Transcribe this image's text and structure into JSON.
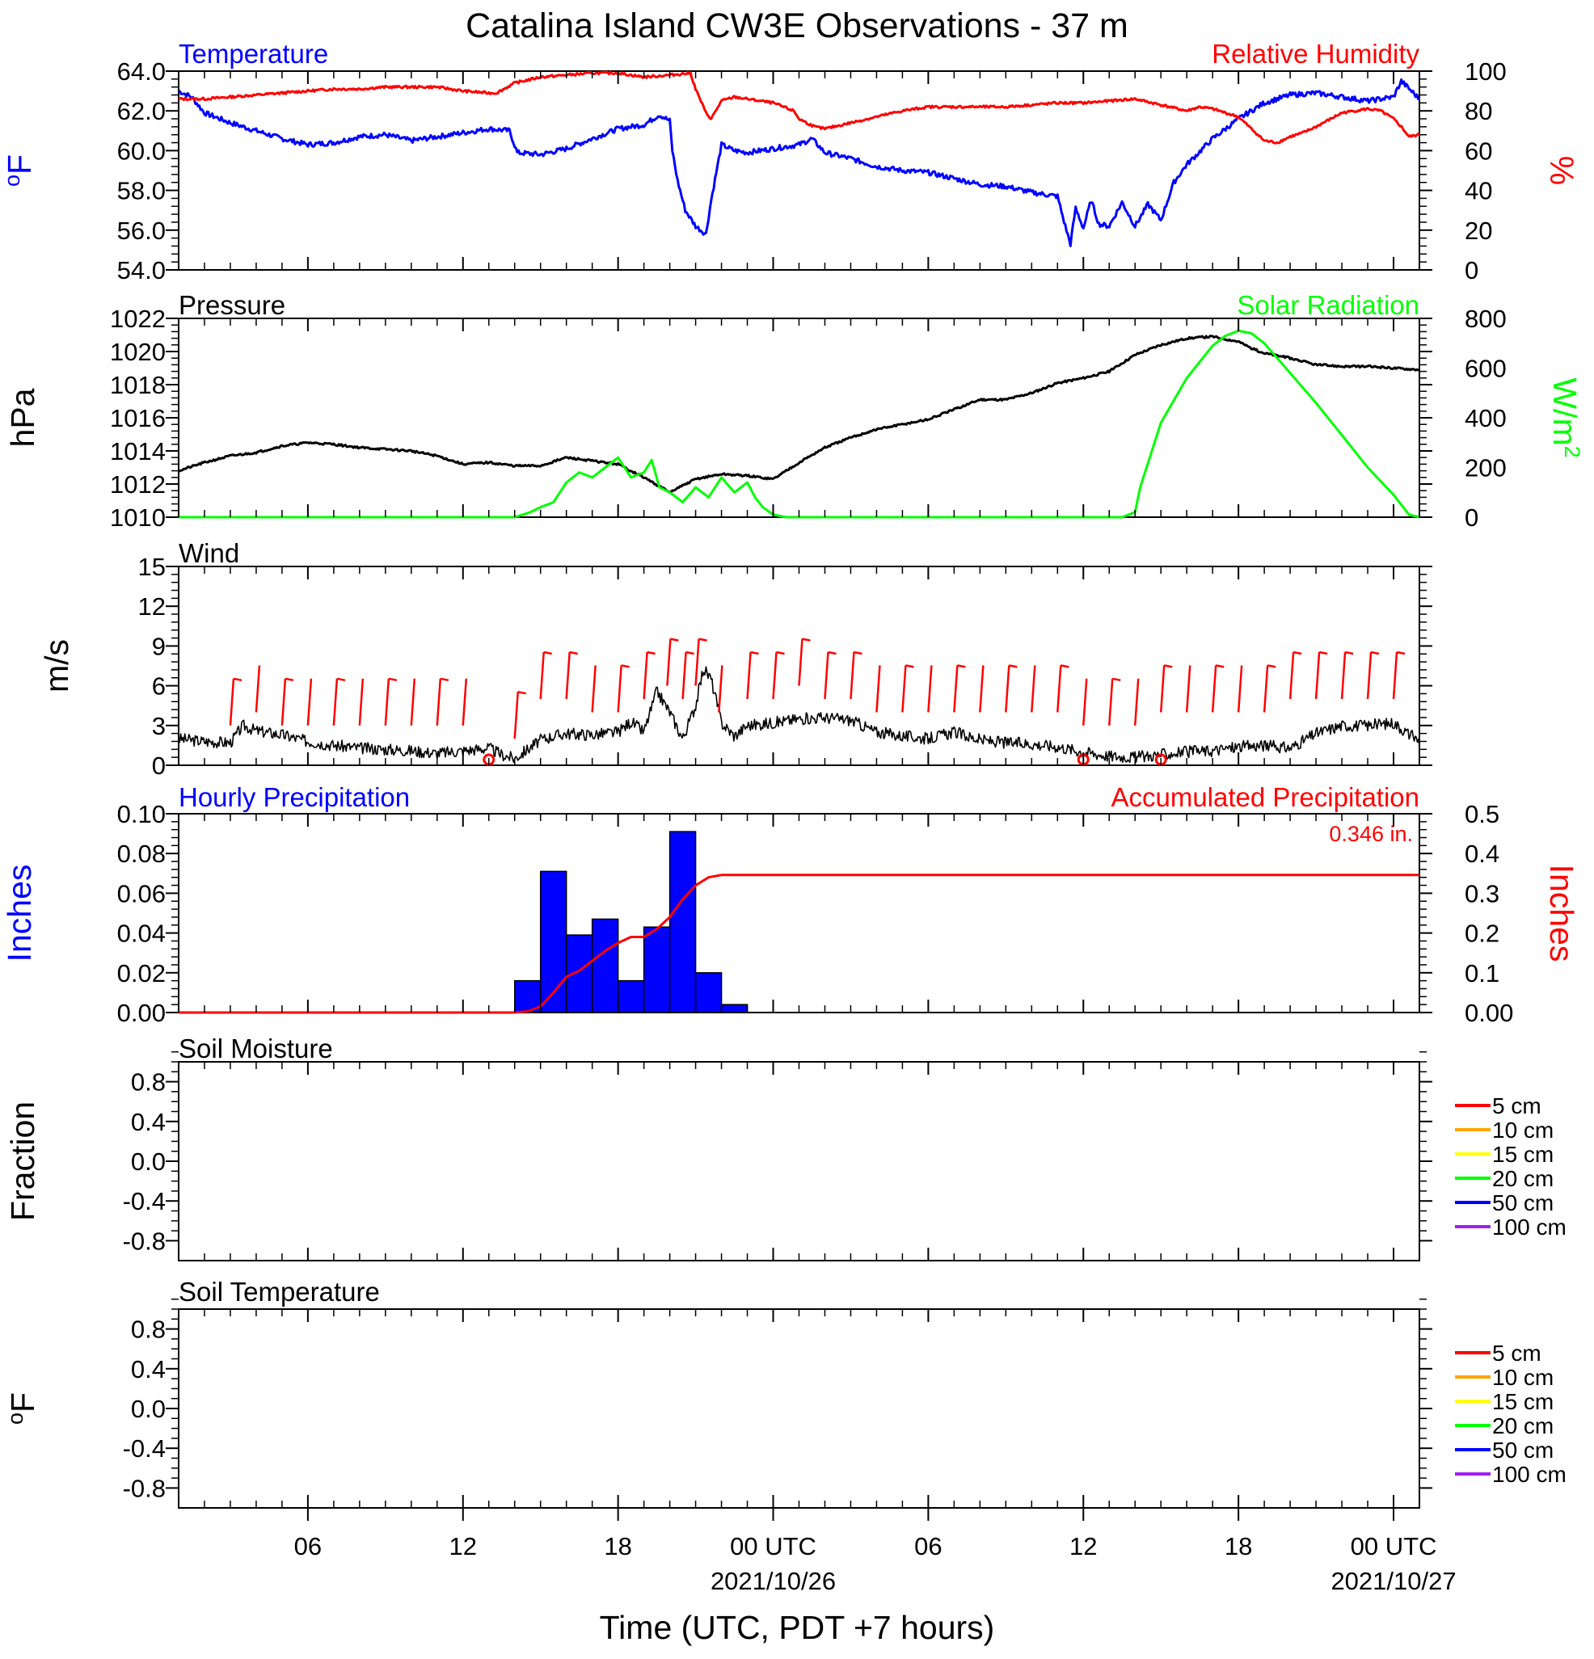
{
  "title": "Catalina Island CW3E Observations - 37 m",
  "xlabel": "Time (UTC, PDT +7 hours)",
  "x_ticks": [
    {
      "h": 6,
      "label": "06",
      "date": ""
    },
    {
      "h": 12,
      "label": "12",
      "date": ""
    },
    {
      "h": 18,
      "label": "18",
      "date": ""
    },
    {
      "h": 24,
      "label": "00 UTC",
      "date": "2021/10/26"
    },
    {
      "h": 30,
      "label": "06",
      "date": ""
    },
    {
      "h": 36,
      "label": "12",
      "date": ""
    },
    {
      "h": 42,
      "label": "18",
      "date": ""
    },
    {
      "h": 48,
      "label": "00 UTC",
      "date": "2021/10/27"
    }
  ],
  "colors": {
    "temperature": "#0000ff",
    "humidity": "#ff0000",
    "pressure": "#000000",
    "solar": "#00ff00",
    "precip_bar": "#0000ff",
    "accum": "#ff0000",
    "wind_barb": "#ff0000"
  },
  "panels": {
    "temp_rh": {
      "left_title": "Temperature",
      "right_title": "Relative Humidity",
      "left_ylabel": "oF",
      "right_ylabel": "%",
      "left_ticks": [
        "54.0",
        "56.0",
        "58.0",
        "60.0",
        "62.0",
        "64.0"
      ],
      "right_ticks": [
        "0",
        "20",
        "40",
        "60",
        "80",
        "100"
      ]
    },
    "pressure_solar": {
      "left_title": "Pressure",
      "right_title": "Solar Radiation",
      "left_ylabel": "hPa",
      "right_ylabel": "W/m2",
      "left_ticks": [
        "1010",
        "1012",
        "1014",
        "1016",
        "1018",
        "1020",
        "1022"
      ],
      "right_ticks": [
        "0",
        "200",
        "400",
        "600",
        "800"
      ]
    },
    "wind": {
      "left_title": "Wind",
      "left_ylabel": "m/s",
      "left_ticks": [
        "0",
        "3",
        "6",
        "9",
        "12",
        "15"
      ]
    },
    "precip": {
      "left_title": "Hourly Precipitation",
      "right_title": "Accumulated Precipitation",
      "total": "0.346 in.",
      "left_ylabel": "Inches",
      "right_ylabel": "Inches",
      "left_ticks": [
        "0.00",
        "0.02",
        "0.04",
        "0.06",
        "0.08",
        "0.10"
      ],
      "right_ticks": [
        "0.00",
        "0.1",
        "0.2",
        "0.3",
        "0.4",
        "0.5"
      ]
    },
    "soil_moisture": {
      "left_title": "Soil Moisture",
      "left_ylabel": "Fraction",
      "left_ticks": [
        "-0.8",
        "-0.4",
        "0.0",
        "0.4",
        "0.8"
      ]
    },
    "soil_temp": {
      "left_title": "Soil Temperature",
      "left_ylabel": "oF",
      "left_ticks": [
        "-0.8",
        "-0.4",
        "0.0",
        "0.4",
        "0.8"
      ]
    }
  },
  "soil_legend": [
    {
      "label": "5 cm",
      "color": "#ff0000"
    },
    {
      "label": "10 cm",
      "color": "#ffa500"
    },
    {
      "label": "15 cm",
      "color": "#ffff00"
    },
    {
      "label": "20 cm",
      "color": "#00ff00"
    },
    {
      "label": "50 cm",
      "color": "#0000ff"
    },
    {
      "label": "100 cm",
      "color": "#a020f0"
    }
  ],
  "chart_data": [
    {
      "type": "line",
      "title": "Temperature / Relative Humidity",
      "x_unit": "hours since 2021-10-25 00 UTC",
      "xlim": [
        1,
        49
      ],
      "series": [
        {
          "name": "Temperature",
          "axis": "left",
          "ylim": [
            54,
            64
          ],
          "x": [
            1,
            1.5,
            2,
            3,
            4,
            5,
            6,
            7,
            8,
            9,
            10,
            11,
            12,
            13,
            13.8,
            14.1,
            15,
            16,
            17,
            18,
            19,
            19.6,
            20,
            20.1,
            20.3,
            20.6,
            21,
            21.4,
            21.6,
            22,
            22.5,
            23,
            24,
            25,
            25.5,
            26,
            27,
            28,
            29,
            30,
            31,
            32,
            33,
            34,
            35,
            35.3,
            35.5,
            35.7,
            36,
            36.3,
            36.6,
            37,
            37.5,
            38,
            38.5,
            39,
            39.5,
            40,
            41,
            42,
            43,
            44,
            45,
            46,
            47,
            48,
            48.3,
            49
          ],
          "y": [
            63.0,
            62.7,
            61.9,
            61.4,
            61.0,
            60.6,
            60.3,
            60.4,
            60.7,
            60.8,
            60.5,
            60.7,
            60.9,
            61.1,
            61.0,
            59.9,
            59.8,
            60.1,
            60.6,
            61.1,
            61.3,
            61.8,
            61.5,
            60.0,
            58.5,
            57.0,
            56.2,
            55.8,
            57.5,
            60.3,
            60.0,
            59.9,
            60.1,
            60.3,
            60.6,
            59.9,
            59.6,
            59.2,
            59.0,
            58.9,
            58.6,
            58.3,
            58.2,
            57.9,
            57.7,
            56.2,
            55.3,
            57.1,
            56.1,
            57.5,
            56.3,
            56.2,
            57.4,
            56.2,
            57.3,
            56.5,
            58.4,
            59.3,
            60.6,
            61.6,
            62.4,
            62.8,
            62.9,
            62.7,
            62.5,
            62.7,
            63.5,
            62.6
          ]
        },
        {
          "name": "Relative Humidity",
          "axis": "right",
          "ylim": [
            0,
            100
          ],
          "x": [
            1,
            2,
            3,
            4,
            5,
            6,
            7,
            8,
            9,
            10,
            11,
            12,
            13,
            13.3,
            14,
            15,
            16,
            17,
            18,
            19,
            20,
            20.8,
            21,
            21.4,
            21.6,
            22,
            22.5,
            23,
            24,
            24.8,
            25,
            25.6,
            26,
            27,
            28,
            29,
            30,
            31,
            32,
            33,
            34,
            35,
            36,
            37,
            38,
            39,
            40,
            40.5,
            41,
            42,
            43,
            43.5,
            44,
            44.5,
            45,
            46,
            47,
            47.5,
            48,
            48.3,
            48.6,
            49
          ],
          "y": [
            86,
            86,
            87,
            88,
            89,
            90,
            91,
            91,
            92,
            92,
            92,
            90,
            89,
            89,
            94,
            97,
            98,
            99,
            99,
            97,
            98,
            99,
            91,
            79,
            76,
            85,
            87,
            86,
            84,
            80,
            76,
            72,
            71,
            74,
            77,
            80,
            82,
            82,
            82,
            82,
            83,
            84,
            84,
            85,
            86,
            83,
            80,
            82,
            81,
            77,
            65,
            64,
            67,
            69,
            72,
            79,
            81,
            80,
            76,
            72,
            67,
            68
          ]
        }
      ]
    },
    {
      "type": "line",
      "title": "Pressure / Solar Radiation",
      "x_unit": "hours since 2021-10-25 00 UTC",
      "xlim": [
        1,
        49
      ],
      "series": [
        {
          "name": "Pressure",
          "axis": "left",
          "ylim": [
            1010,
            1022
          ],
          "x": [
            1,
            2,
            3,
            4,
            5,
            6,
            7,
            8,
            9,
            10,
            11,
            12,
            13,
            14,
            15,
            16,
            17,
            18,
            19,
            20,
            21,
            22,
            23,
            24,
            25,
            26,
            27,
            28,
            29,
            30,
            31,
            32,
            33,
            34,
            35,
            36,
            37,
            38,
            39,
            40,
            41,
            42,
            42.5,
            43,
            44,
            45,
            46,
            47,
            48,
            49
          ],
          "y": [
            1012.8,
            1013.3,
            1013.7,
            1013.9,
            1014.3,
            1014.5,
            1014.4,
            1014.2,
            1014.1,
            1014.0,
            1013.7,
            1013.2,
            1013.3,
            1013.1,
            1013.1,
            1013.6,
            1013.4,
            1013.2,
            1012.4,
            1011.5,
            1012.3,
            1012.6,
            1012.5,
            1012.3,
            1013.3,
            1014.2,
            1014.8,
            1015.3,
            1015.6,
            1015.9,
            1016.5,
            1017.1,
            1017.1,
            1017.5,
            1018.1,
            1018.4,
            1018.8,
            1019.8,
            1020.4,
            1020.8,
            1020.9,
            1020.6,
            1020.2,
            1019.9,
            1019.6,
            1019.2,
            1019.1,
            1019.1,
            1019.0,
            1018.9
          ]
        },
        {
          "name": "Solar Radiation",
          "axis": "right",
          "ylim": [
            0,
            800
          ],
          "x": [
            1,
            14,
            14.6,
            15,
            15.5,
            16,
            16.5,
            17,
            17.5,
            18,
            18.5,
            19,
            19.3,
            19.6,
            20,
            20.5,
            21,
            21.5,
            22,
            22.5,
            23,
            23.3,
            23.6,
            24,
            24.5,
            37.5,
            38,
            38.2,
            39,
            40,
            41,
            41.5,
            42,
            42.5,
            43,
            43.5,
            44,
            45,
            46,
            47,
            48,
            48.6,
            49
          ],
          "y": [
            0,
            0,
            20,
            40,
            60,
            140,
            180,
            160,
            200,
            240,
            160,
            180,
            230,
            120,
            100,
            60,
            120,
            80,
            160,
            100,
            140,
            80,
            40,
            10,
            0,
            0,
            20,
            120,
            380,
            560,
            690,
            730,
            750,
            740,
            700,
            640,
            580,
            460,
            330,
            200,
            90,
            10,
            0
          ]
        }
      ]
    },
    {
      "type": "line",
      "title": "Wind",
      "x_unit": "hours since 2021-10-25 00 UTC",
      "xlim": [
        1,
        49
      ],
      "series": [
        {
          "name": "Wind speed",
          "ylim": [
            0,
            15
          ],
          "x": [
            1,
            2,
            3,
            3.5,
            4,
            5,
            6,
            7,
            8,
            9,
            10,
            11,
            12,
            13,
            13.5,
            14,
            15,
            15.5,
            16,
            17,
            18,
            18.5,
            19,
            19.5,
            20,
            20.5,
            21,
            21.3,
            21.6,
            22,
            22.5,
            23,
            24,
            25,
            26,
            27,
            28,
            29,
            30,
            31,
            32,
            33,
            34,
            35,
            36,
            37,
            38,
            39,
            40,
            41,
            42,
            43,
            44,
            45,
            46,
            47,
            48,
            49
          ],
          "y": [
            2.0,
            1.8,
            1.7,
            3.0,
            2.6,
            2.3,
            1.8,
            1.5,
            1.3,
            1.2,
            1.1,
            0.9,
            1.1,
            1.3,
            0.8,
            0.5,
            1.9,
            2.2,
            2.4,
            2.3,
            2.5,
            3.3,
            2.5,
            5.6,
            4.0,
            2.0,
            4.5,
            7.3,
            6.5,
            3.2,
            2.2,
            3.0,
            3.2,
            3.5,
            3.6,
            3.4,
            2.5,
            2.2,
            2.0,
            2.5,
            1.9,
            1.7,
            1.6,
            1.4,
            1.0,
            0.7,
            0.6,
            0.8,
            1.0,
            1.1,
            1.4,
            1.5,
            1.3,
            2.4,
            3.0,
            3.0,
            3.2,
            1.8
          ]
        },
        {
          "name": "Wind barbs",
          "x": [
            3,
            4,
            5,
            6,
            7,
            8,
            9,
            10,
            11,
            12,
            14,
            15,
            16,
            17,
            18,
            19,
            19.9,
            20.5,
            21,
            21.9,
            23,
            24,
            25,
            26,
            27,
            28,
            29,
            30,
            31,
            32,
            33,
            34,
            35,
            36,
            37,
            38,
            39,
            40,
            41,
            42,
            43,
            44,
            45,
            46,
            47,
            48
          ],
          "y": [
            3,
            4,
            3,
            3,
            3,
            3,
            3,
            3,
            3,
            3,
            2,
            5,
            5,
            4,
            4,
            5,
            6,
            5,
            6,
            4,
            5,
            5,
            6,
            5,
            5,
            4,
            4,
            4,
            4,
            4,
            4,
            4,
            4,
            3,
            3,
            3,
            4,
            4,
            4,
            4,
            4,
            5,
            5,
            5,
            5,
            5
          ]
        },
        {
          "name": "Calm",
          "x": [
            13,
            36,
            39
          ],
          "y": [
            0,
            0,
            0
          ]
        }
      ]
    },
    {
      "type": "bar",
      "title": "Hourly Precipitation / Accumulated Precipitation",
      "x_unit": "hours since 2021-10-25 00 UTC",
      "xlim": [
        1,
        49
      ],
      "series": [
        {
          "name": "Hourly Precipitation",
          "axis": "left",
          "ylim": [
            0,
            0.1
          ],
          "x": [
            14,
            15,
            16,
            17,
            18,
            19,
            20,
            21,
            22
          ],
          "y": [
            0.016,
            0.071,
            0.039,
            0.047,
            0.016,
            0.043,
            0.091,
            0.02,
            0.004
          ]
        },
        {
          "name": "Accumulated Precipitation",
          "axis": "right",
          "type": "line",
          "ylim": [
            0,
            0.5
          ],
          "x": [
            1,
            14,
            14.5,
            15,
            15.5,
            16,
            16.5,
            17,
            17.5,
            18,
            18.5,
            19,
            19.5,
            20,
            20.5,
            21,
            21.5,
            22,
            49
          ],
          "y": [
            0,
            0,
            0.003,
            0.015,
            0.05,
            0.09,
            0.105,
            0.13,
            0.155,
            0.175,
            0.19,
            0.19,
            0.21,
            0.24,
            0.285,
            0.32,
            0.34,
            0.346,
            0.346
          ]
        }
      ]
    },
    {
      "type": "line",
      "title": "Soil Moisture",
      "ylim": [
        -1,
        1
      ],
      "series": []
    },
    {
      "type": "line",
      "title": "Soil Temperature",
      "ylim": [
        -1,
        1
      ],
      "series": []
    }
  ]
}
